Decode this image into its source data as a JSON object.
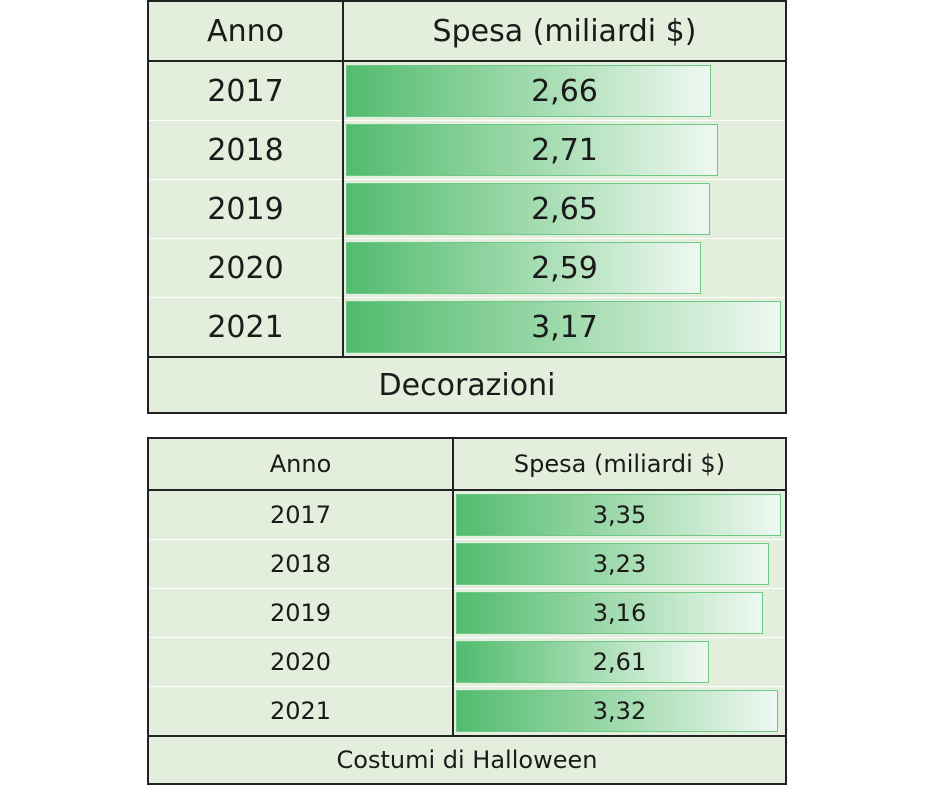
{
  "chart_data": [
    {
      "type": "table",
      "title": "Decorazioni",
      "columns": [
        "Anno",
        "Spesa (miliardi $)"
      ],
      "max_value": 3.17,
      "rows": [
        {
          "year": "2017",
          "label": "2,66",
          "value": 2.66
        },
        {
          "year": "2018",
          "label": "2,71",
          "value": 2.71
        },
        {
          "year": "2019",
          "label": "2,65",
          "value": 2.65
        },
        {
          "year": "2020",
          "label": "2,59",
          "value": 2.59
        },
        {
          "year": "2021",
          "label": "3,17",
          "value": 3.17
        }
      ]
    },
    {
      "type": "table",
      "title": "Costumi di Halloween",
      "columns": [
        "Anno",
        "Spesa (miliardi $)"
      ],
      "max_value": 3.35,
      "rows": [
        {
          "year": "2017",
          "label": "3,35",
          "value": 3.35
        },
        {
          "year": "2018",
          "label": "3,23",
          "value": 3.23
        },
        {
          "year": "2019",
          "label": "3,16",
          "value": 3.16
        },
        {
          "year": "2020",
          "label": "2,61",
          "value": 2.61
        },
        {
          "year": "2021",
          "label": "3,32",
          "value": 3.32
        }
      ]
    }
  ]
}
